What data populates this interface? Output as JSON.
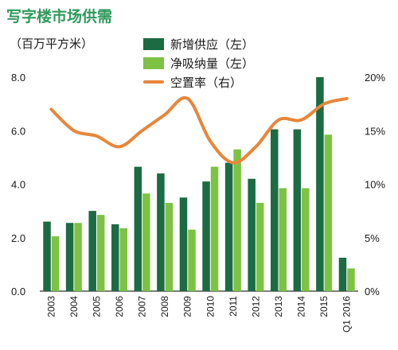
{
  "chart_data": {
    "type": "bar",
    "title": "写字楼市场供需",
    "ylabel_left": "（百万平方米）",
    "ylabel_right": "",
    "xlabel": "",
    "categories": [
      "2003",
      "2004",
      "2005",
      "2006",
      "2007",
      "2008",
      "2009",
      "2010",
      "2011",
      "2012",
      "2013",
      "2014",
      "2015",
      "Q1 2016"
    ],
    "left_axis": {
      "min": 0,
      "max": 8,
      "ticks": [
        "0.0",
        "2.0",
        "4.0",
        "6.0",
        "8.0"
      ]
    },
    "right_axis": {
      "min": 0,
      "max": 20,
      "ticks": [
        "0%",
        "5%",
        "10%",
        "15%",
        "20%"
      ]
    },
    "series": [
      {
        "name": "新增供应（左）",
        "kind": "bar",
        "axis": "left",
        "color": "#1b6b43",
        "values": [
          2.6,
          2.55,
          3.0,
          2.5,
          4.65,
          4.4,
          3.5,
          4.1,
          4.8,
          4.2,
          6.05,
          6.05,
          8.0,
          1.25
        ]
      },
      {
        "name": "净吸纳量（左）",
        "kind": "bar",
        "axis": "left",
        "color": "#7dc242",
        "values": [
          2.05,
          2.55,
          2.85,
          2.35,
          3.65,
          3.3,
          2.3,
          4.65,
          5.3,
          3.3,
          3.85,
          3.85,
          5.85,
          0.85
        ]
      },
      {
        "name": "空置率（右）",
        "kind": "line",
        "axis": "right",
        "color": "#e8863a",
        "values": [
          17.0,
          15.0,
          14.5,
          13.5,
          15.0,
          16.5,
          18.0,
          14.0,
          12.0,
          13.5,
          16.0,
          16.0,
          17.5,
          18.0
        ]
      }
    ],
    "grid": false,
    "legend_position": "top-center"
  }
}
